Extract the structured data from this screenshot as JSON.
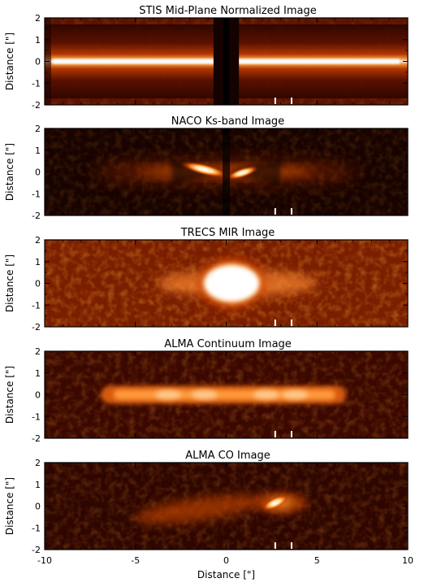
{
  "figure": {
    "x_axis": {
      "label": "Distance [\"]",
      "ticks": [
        "-10",
        "-5",
        "0",
        "5",
        "10"
      ],
      "range": [
        -10,
        10
      ]
    },
    "y_axis": {
      "label": "Distance [\"]",
      "ticks": [
        "2",
        "1",
        "0",
        "-1",
        "-2"
      ],
      "range": [
        -2,
        2
      ]
    },
    "marker_positions_arcsec": [
      2.7,
      3.6
    ],
    "panels": [
      {
        "id": "stis",
        "title": "STIS Mid-Plane Normalized Image"
      },
      {
        "id": "naco",
        "title": "NACO Ks-band Image"
      },
      {
        "id": "trecs",
        "title": "TRECS MIR Image"
      },
      {
        "id": "alma_cont",
        "title": "ALMA Continuum Image"
      },
      {
        "id": "alma_co",
        "title": "ALMA CO Image"
      }
    ]
  }
}
